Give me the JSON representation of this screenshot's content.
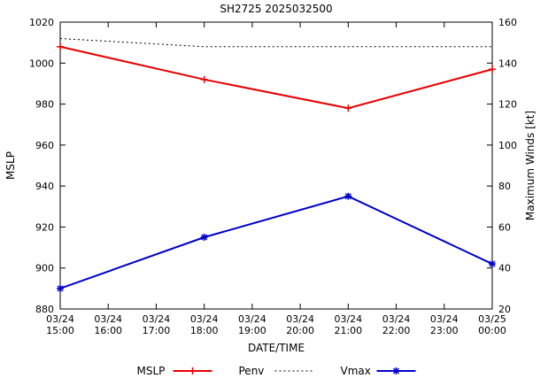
{
  "chart_data": {
    "type": "line",
    "title": "SH2725 2025032500",
    "xlabel": "DATE/TIME",
    "ylabel_left": "MSLP",
    "ylabel_right": "Maximum Winds [kt]",
    "x_range": [
      15,
      24
    ],
    "x_ticks": [
      {
        "hour": 15,
        "date": "03/24",
        "time": "15:00"
      },
      {
        "hour": 16,
        "date": "03/24",
        "time": "16:00"
      },
      {
        "hour": 17,
        "date": "03/24",
        "time": "17:00"
      },
      {
        "hour": 18,
        "date": "03/24",
        "time": "18:00"
      },
      {
        "hour": 19,
        "date": "03/24",
        "time": "19:00"
      },
      {
        "hour": 20,
        "date": "03/24",
        "time": "20:00"
      },
      {
        "hour": 21,
        "date": "03/24",
        "time": "21:00"
      },
      {
        "hour": 22,
        "date": "03/24",
        "time": "22:00"
      },
      {
        "hour": 23,
        "date": "03/24",
        "time": "23:00"
      },
      {
        "hour": 24,
        "date": "03/25",
        "time": "00:00"
      }
    ],
    "ylim_left": [
      880,
      1020
    ],
    "ylim_right": [
      20,
      160
    ],
    "yticks_left": [
      880,
      900,
      920,
      940,
      960,
      980,
      1000,
      1020
    ],
    "yticks_right": [
      20,
      40,
      60,
      80,
      100,
      120,
      140,
      160
    ],
    "grid": false,
    "legend_position": "bottom-center",
    "series": [
      {
        "name": "MSLP",
        "axis": "left",
        "color": "#e80000",
        "style": "solid",
        "marker": "plus",
        "x": [
          15,
          18,
          21,
          24
        ],
        "values": [
          1008,
          992,
          978,
          997
        ]
      },
      {
        "name": "Penv",
        "axis": "left",
        "color": "#000000",
        "style": "dotted",
        "marker": "none",
        "x": [
          15,
          18,
          21,
          24
        ],
        "values": [
          1012,
          1008,
          1008,
          1008
        ]
      },
      {
        "name": "Vmax",
        "axis": "right",
        "color": "#0000cc",
        "style": "solid",
        "marker": "asterisk",
        "x": [
          15,
          18,
          21,
          24
        ],
        "values": [
          30,
          55,
          75,
          42
        ]
      }
    ]
  }
}
